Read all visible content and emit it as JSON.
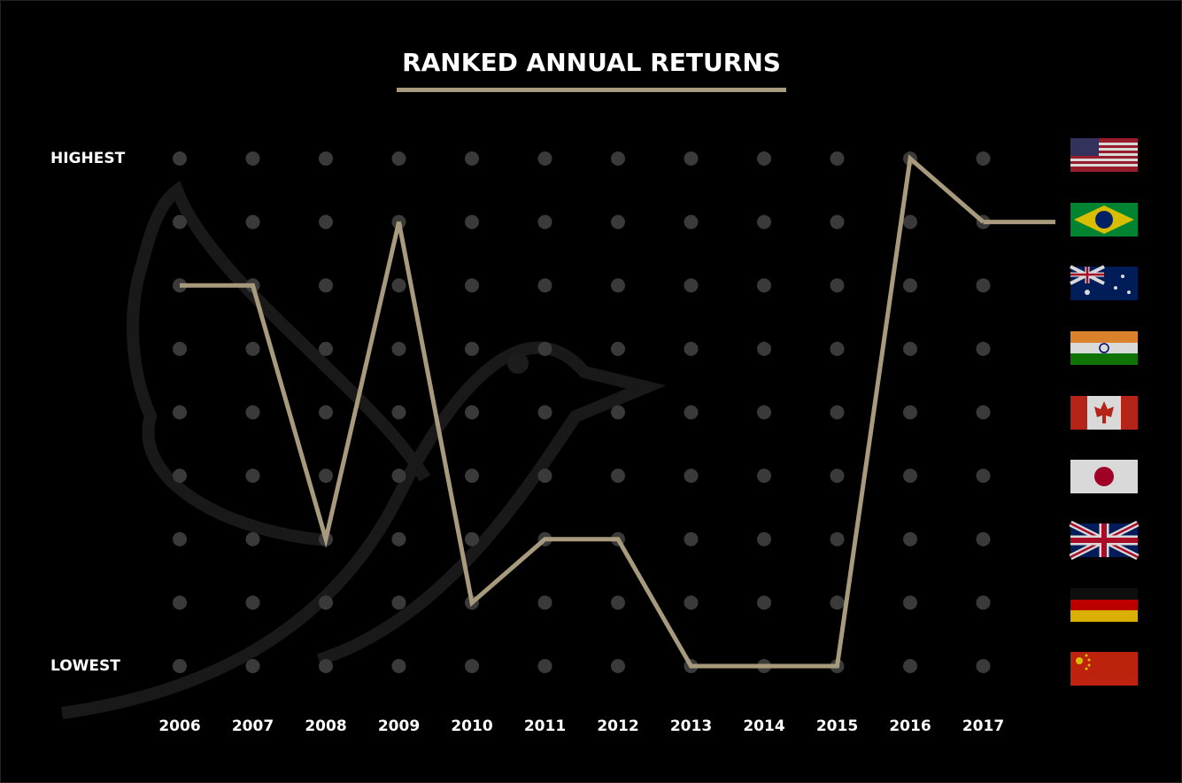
{
  "chart_data": {
    "type": "line",
    "title": "RANKED ANNUAL RETURNS",
    "categories": [
      "2006",
      "2007",
      "2008",
      "2009",
      "2010",
      "2011",
      "2012",
      "2013",
      "2014",
      "2015",
      "2016",
      "2017"
    ],
    "values": [
      3,
      3,
      7,
      2,
      8,
      7,
      7,
      9,
      9,
      9,
      1,
      2
    ],
    "color": "#a89a7c",
    "ylim": [
      9,
      1
    ],
    "yticks": [
      {
        "value": 1,
        "label": "HIGHEST"
      },
      {
        "value": 9,
        "label": "LOWEST"
      }
    ],
    "grid": true
  }
}
